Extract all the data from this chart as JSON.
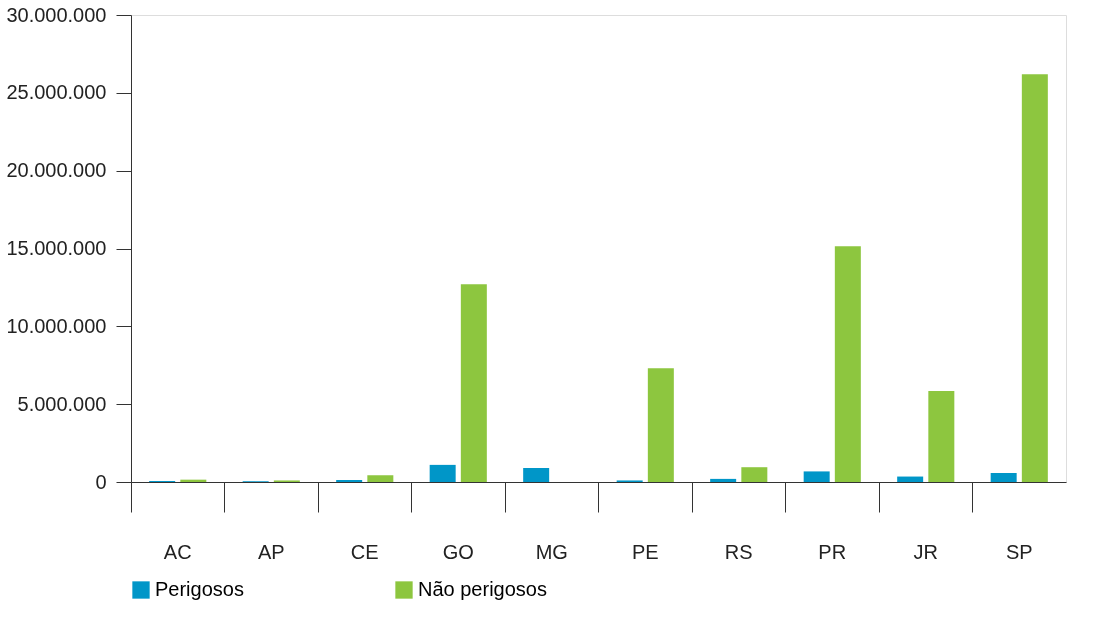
{
  "chart_data": {
    "type": "bar",
    "categories": [
      "AC",
      "AP",
      "CE",
      "GO",
      "MG",
      "PE",
      "RS",
      "PR",
      "JR",
      "SP"
    ],
    "series": [
      {
        "name": "Perigosos",
        "color": "#0096c8",
        "values": [
          60000,
          50000,
          130000,
          1100000,
          900000,
          100000,
          200000,
          680000,
          350000,
          580000
        ]
      },
      {
        "name": "Não perigosos",
        "color": "#8dc63f",
        "values": [
          150000,
          100000,
          430000,
          12700000,
          0,
          7300000,
          950000,
          15150000,
          5850000,
          26200000
        ]
      }
    ],
    "ylim": [
      0,
      30000000
    ],
    "yticks": [
      {
        "value": 0,
        "label": "0"
      },
      {
        "value": 5000000,
        "label": "5.000.000"
      },
      {
        "value": 10000000,
        "label": "10.000.000"
      },
      {
        "value": 15000000,
        "label": "15.000.000"
      },
      {
        "value": 20000000,
        "label": "20.000.000"
      },
      {
        "value": 25000000,
        "label": "25.000.000"
      },
      {
        "value": 30000000,
        "label": "30.000.000"
      }
    ],
    "grid": false,
    "legend": "bottom"
  }
}
